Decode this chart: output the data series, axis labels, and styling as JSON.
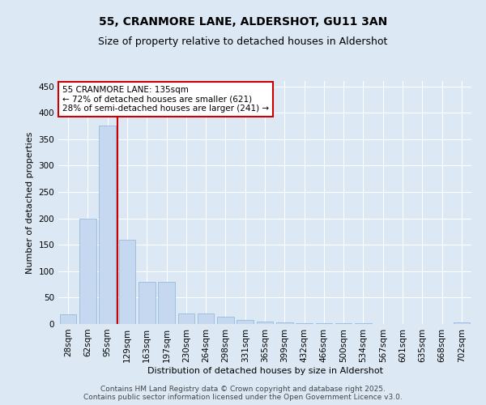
{
  "title_line1": "55, CRANMORE LANE, ALDERSHOT, GU11 3AN",
  "title_line2": "Size of property relative to detached houses in Aldershot",
  "xlabel": "Distribution of detached houses by size in Aldershot",
  "ylabel": "Number of detached properties",
  "categories": [
    "28sqm",
    "62sqm",
    "95sqm",
    "129sqm",
    "163sqm",
    "197sqm",
    "230sqm",
    "264sqm",
    "298sqm",
    "331sqm",
    "365sqm",
    "399sqm",
    "432sqm",
    "466sqm",
    "500sqm",
    "534sqm",
    "567sqm",
    "601sqm",
    "635sqm",
    "668sqm",
    "702sqm"
  ],
  "values": [
    18,
    200,
    375,
    160,
    80,
    80,
    20,
    20,
    14,
    7,
    5,
    3,
    1,
    1,
    1,
    1,
    0,
    0,
    0,
    0,
    3
  ],
  "bar_color": "#c5d8ef",
  "bar_edgecolor": "#8ab4d8",
  "vline_color": "#cc0000",
  "vline_x_index": 2.5,
  "annotation_text": "55 CRANMORE LANE: 135sqm\n← 72% of detached houses are smaller (621)\n28% of semi-detached houses are larger (241) →",
  "annotation_box_edgecolor": "#cc0000",
  "annotation_box_facecolor": "#ffffff",
  "ylim": [
    0,
    460
  ],
  "yticks": [
    0,
    50,
    100,
    150,
    200,
    250,
    300,
    350,
    400,
    450
  ],
  "background_color": "#dce9f5",
  "plot_background_color": "#dce9f5",
  "footer_text": "Contains HM Land Registry data © Crown copyright and database right 2025.\nContains public sector information licensed under the Open Government Licence v3.0.",
  "title_fontsize": 10,
  "subtitle_fontsize": 9,
  "axis_label_fontsize": 8,
  "tick_fontsize": 7.5,
  "annotation_fontsize": 7.5,
  "footer_fontsize": 6.5
}
